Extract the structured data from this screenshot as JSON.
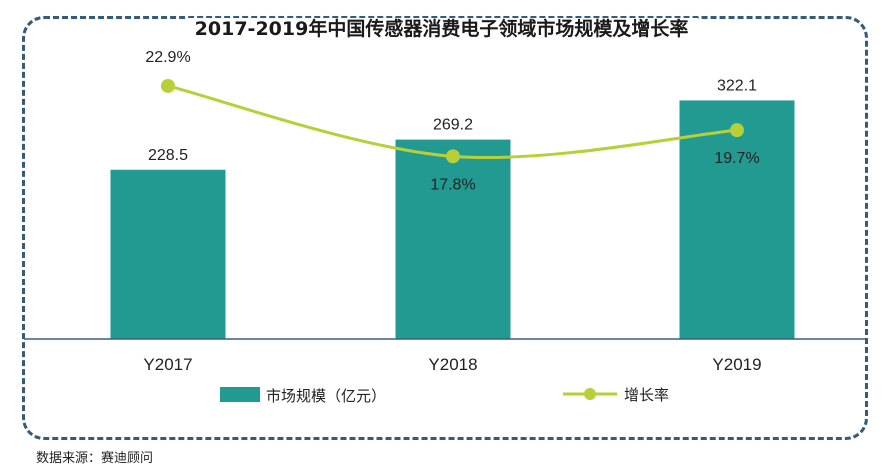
{
  "title": "2017-2019年中国传感器消费电子领域市场规模及增长率",
  "source": "数据来源：赛迪顾问",
  "colors": {
    "bar": "#229a91",
    "line": "#b9cf38",
    "frame": "#355a7a",
    "axis": "#3a5f80"
  },
  "chart_data": {
    "type": "bar",
    "title": "2017-2019年中国传感器消费电子领域市场规模及增长率",
    "categories": [
      "Y2017",
      "Y2018",
      "Y2019"
    ],
    "series": [
      {
        "name": "市场规模（亿元）",
        "type": "bar",
        "values": [
          228.5,
          269.2,
          322.1
        ],
        "labels": [
          "228.5",
          "269.2",
          "322.1"
        ]
      },
      {
        "name": "增长率",
        "type": "line",
        "values": [
          22.9,
          17.8,
          19.7
        ],
        "labels": [
          "22.9%",
          "17.8%",
          "19.7%"
        ]
      }
    ],
    "legend": "bottom",
    "grid": false
  }
}
